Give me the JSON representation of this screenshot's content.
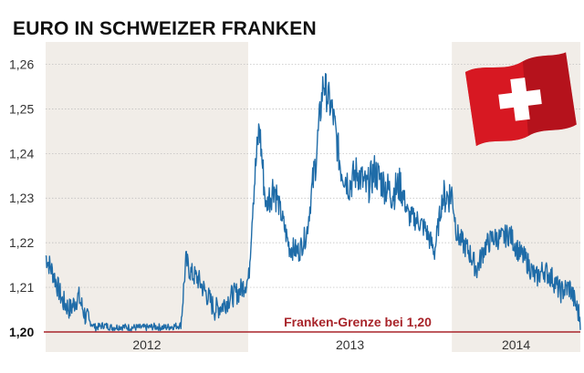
{
  "chart_data": {
    "type": "line",
    "title": "EURO IN SCHWEIZER FRANKEN",
    "xlabel": "",
    "ylabel": "",
    "ylim": [
      1.2,
      1.265
    ],
    "yticks": [
      "1,20",
      "1,21",
      "1,22",
      "1,23",
      "1,24",
      "1,25",
      "1,26"
    ],
    "ytick_values": [
      1.2,
      1.21,
      1.22,
      1.23,
      1.24,
      1.25,
      1.26
    ],
    "xlim": [
      "2012-01-02",
      "2014-08-20"
    ],
    "year_bands": [
      {
        "label": "2012",
        "start": "2012-01-01",
        "end": "2012-12-31",
        "shaded": true
      },
      {
        "label": "2013",
        "start": "2013-01-01",
        "end": "2013-12-31",
        "shaded": false
      },
      {
        "label": "2014",
        "start": "2014-01-01",
        "end": "2014-08-20",
        "shaded": true
      }
    ],
    "grid": true,
    "line_color": "#1f6ca8",
    "band_color": "#f1ede8",
    "reference_line": {
      "value": 1.2,
      "label": "Franken-Grenze bei 1,20",
      "color": "#a8242a"
    },
    "series": [
      {
        "x": [
          "2012-01-02",
          "2012-01-16",
          "2012-02-01",
          "2012-02-15",
          "2012-03-01",
          "2012-03-15",
          "2012-04-01",
          "2012-04-15",
          "2012-05-01",
          "2012-05-15",
          "2012-06-01",
          "2012-06-15",
          "2012-07-01",
          "2012-07-15",
          "2012-08-01",
          "2012-08-15",
          "2012-09-01",
          "2012-09-10",
          "2012-09-20",
          "2012-10-01",
          "2012-10-15",
          "2012-11-01",
          "2012-11-15",
          "2012-12-01",
          "2012-12-15",
          "2013-01-01",
          "2013-01-10",
          "2013-01-20",
          "2013-02-01",
          "2013-02-15",
          "2013-03-01",
          "2013-03-15",
          "2013-04-01",
          "2013-04-15",
          "2013-05-01",
          "2013-05-15",
          "2013-06-01",
          "2013-06-15",
          "2013-07-01",
          "2013-07-15",
          "2013-08-01",
          "2013-08-15",
          "2013-09-01",
          "2013-09-15",
          "2013-10-01",
          "2013-10-15",
          "2013-11-01",
          "2013-11-15",
          "2013-12-01",
          "2013-12-15",
          "2014-01-01",
          "2014-01-10",
          "2014-01-20",
          "2014-02-01",
          "2014-02-15",
          "2014-03-01",
          "2014-03-15",
          "2014-04-01",
          "2014-04-15",
          "2014-05-01",
          "2014-05-15",
          "2014-06-01",
          "2014-06-15",
          "2014-07-01",
          "2014-07-15",
          "2014-08-01",
          "2014-08-20"
        ],
        "values": [
          1.217,
          1.213,
          1.207,
          1.205,
          1.208,
          1.203,
          1.201,
          1.2015,
          1.201,
          1.2012,
          1.201,
          1.201,
          1.201,
          1.2012,
          1.201,
          1.2012,
          1.2015,
          1.216,
          1.213,
          1.212,
          1.209,
          1.205,
          1.206,
          1.208,
          1.209,
          1.212,
          1.232,
          1.246,
          1.228,
          1.233,
          1.226,
          1.219,
          1.218,
          1.222,
          1.238,
          1.256,
          1.249,
          1.237,
          1.233,
          1.236,
          1.232,
          1.236,
          1.233,
          1.231,
          1.233,
          1.226,
          1.225,
          1.223,
          1.218,
          1.23,
          1.231,
          1.222,
          1.22,
          1.218,
          1.214,
          1.219,
          1.221,
          1.221,
          1.222,
          1.218,
          1.216,
          1.212,
          1.214,
          1.212,
          1.209,
          1.21,
          1.203
        ]
      }
    ]
  }
}
